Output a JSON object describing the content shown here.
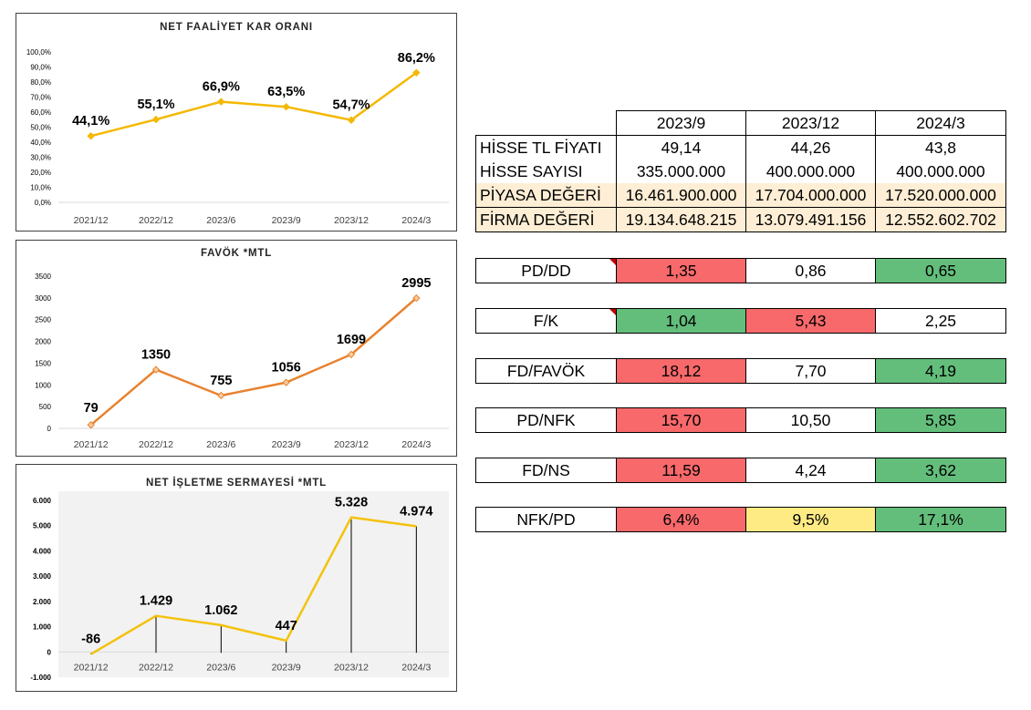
{
  "chart_data": [
    {
      "type": "line",
      "title": "NET FAALİYET KAR ORANI",
      "categories": [
        "2021/12",
        "2022/12",
        "2023/6",
        "2023/9",
        "2023/12",
        "2024/3"
      ],
      "values": [
        44.1,
        55.1,
        66.9,
        63.5,
        54.7,
        86.2
      ],
      "data_labels": [
        "44,1%",
        "55,1%",
        "66,9%",
        "63,5%",
        "54,7%",
        "86,2%"
      ],
      "ylim": [
        0,
        100
      ],
      "yticks": [
        "0,0%",
        "10,0%",
        "20,0%",
        "30,0%",
        "40,0%",
        "50,0%",
        "60,0%",
        "70,0%",
        "80,0%",
        "90,0%",
        "100,0%"
      ],
      "color": "#f4b800",
      "grid": false
    },
    {
      "type": "line",
      "title": "FAVÖK *MTL",
      "categories": [
        "2021/12",
        "2022/12",
        "2023/6",
        "2023/9",
        "2023/12",
        "2024/3"
      ],
      "values": [
        79,
        1350,
        755,
        1056,
        1699,
        2995
      ],
      "data_labels": [
        "79",
        "1350",
        "755",
        "1056",
        "1699",
        "2995"
      ],
      "ylim": [
        0,
        3500
      ],
      "yticks": [
        "0",
        "500",
        "1000",
        "1500",
        "2000",
        "2500",
        "3000",
        "3500"
      ],
      "color": "#e8822e",
      "grid": false
    },
    {
      "type": "line",
      "title": "NET İŞLETME SERMAYESİ *MTL",
      "categories": [
        "2021/12",
        "2022/12",
        "2023/6",
        "2023/9",
        "2023/12",
        "2024/3"
      ],
      "values": [
        -86,
        1429,
        1062,
        447,
        5328,
        4974
      ],
      "data_labels": [
        "-86",
        "1.429",
        "1.062",
        "447",
        "5.328",
        "4.974"
      ],
      "ylim": [
        -1000,
        6000
      ],
      "yticks": [
        "-1.000",
        "0",
        "1.000",
        "2.000",
        "3.000",
        "4.000",
        "5.000",
        "6.000"
      ],
      "color": "#f4c20d",
      "grid": false,
      "drop_lines": true
    }
  ],
  "table": {
    "headers": [
      "2023/9",
      "2023/12",
      "2024/3"
    ],
    "rows": [
      {
        "label": "HİSSE TL FİYATI",
        "values": [
          "49,14",
          "44,26",
          "43,8"
        ]
      },
      {
        "label": "HİSSE SAYISI",
        "values": [
          "335.000.000",
          "400.000.000",
          "400.000.000"
        ]
      },
      {
        "label": "PİYASA DEĞERİ",
        "values": [
          "16.461.900.000",
          "17.704.000.000",
          "17.520.000.000"
        ]
      },
      {
        "label": "FİRMA DEĞERİ",
        "values": [
          "19.134.648.215",
          "13.079.491.156",
          "12.552.602.702"
        ]
      }
    ]
  },
  "ratios": [
    {
      "label": "PD/DD",
      "values": [
        "1,35",
        "0,86",
        "0,65"
      ],
      "colors": [
        "red",
        "white",
        "green"
      ],
      "flag": true
    },
    {
      "label": "F/K",
      "values": [
        "1,04",
        "5,43",
        "2,25"
      ],
      "colors": [
        "green",
        "red",
        "white"
      ],
      "flag": true
    },
    {
      "label": "FD/FAVÖK",
      "values": [
        "18,12",
        "7,70",
        "4,19"
      ],
      "colors": [
        "red",
        "white",
        "green"
      ],
      "flag": false
    },
    {
      "label": "PD/NFK",
      "values": [
        "15,70",
        "10,50",
        "5,85"
      ],
      "colors": [
        "red",
        "white",
        "green"
      ],
      "flag": false
    },
    {
      "label": "FD/NS",
      "values": [
        "11,59",
        "4,24",
        "3,62"
      ],
      "colors": [
        "red",
        "white",
        "green"
      ],
      "flag": false
    },
    {
      "label": "NFK/PD",
      "values": [
        "6,4%",
        "9,5%",
        "17,1%"
      ],
      "colors": [
        "red",
        "yellow",
        "green"
      ],
      "flag": false
    }
  ]
}
